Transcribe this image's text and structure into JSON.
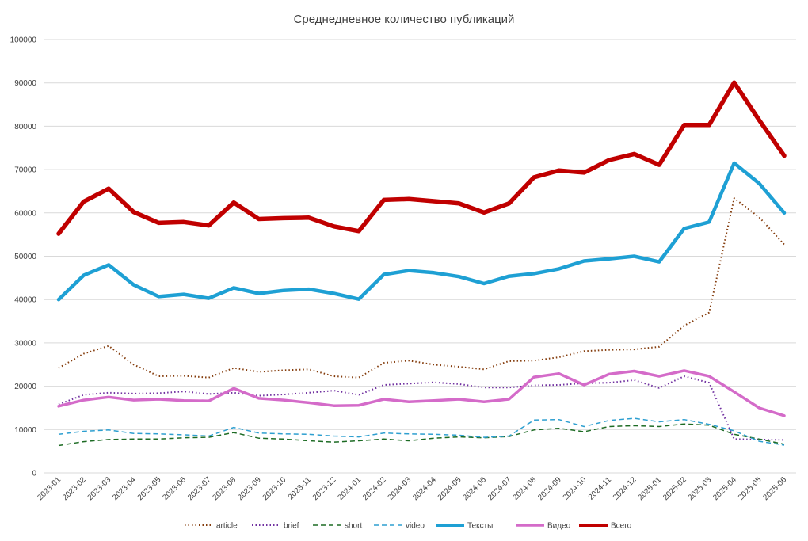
{
  "chart_data": {
    "type": "line",
    "title": "Среднедневное количество публикаций",
    "xlabel": "",
    "ylabel": "",
    "ylim": [
      0,
      100000
    ],
    "yticks": [
      "0",
      "10000",
      "20000",
      "30000",
      "40000",
      "50000",
      "60000",
      "70000",
      "80000",
      "90000",
      "100000"
    ],
    "grid": true,
    "legend_position": "bottom",
    "categories": [
      "2023-01",
      "2023-02",
      "2023-03",
      "2023-04",
      "2023-05",
      "2023-06",
      "2023-07",
      "2023-08",
      "2023-09",
      "2023-10",
      "2023-11",
      "2023-12",
      "2024-01",
      "2024-02",
      "2024-03",
      "2024-04",
      "2024-05",
      "2024-06",
      "2024-07",
      "2024-08",
      "2024-09",
      "2024-10",
      "2024-11",
      "2024-12",
      "2025-01",
      "2025-02",
      "2025-03",
      "2025-04",
      "2025-05",
      "2025-06"
    ],
    "series": [
      {
        "name": "article",
        "color": "#843c0c",
        "style": "dotted",
        "width": 2,
        "values": [
          24200,
          27500,
          29300,
          25000,
          22300,
          22400,
          22000,
          24200,
          23300,
          23700,
          23900,
          22300,
          22000,
          25400,
          25900,
          25000,
          24500,
          23900,
          25800,
          25900,
          26700,
          28100,
          28400,
          28500,
          29100,
          34000,
          37000,
          63400,
          59000,
          52700
        ]
      },
      {
        "name": "brief",
        "color": "#7030a0",
        "style": "dotted",
        "width": 2,
        "values": [
          15800,
          18000,
          18500,
          18300,
          18400,
          18800,
          18200,
          18500,
          17800,
          18100,
          18500,
          19000,
          18000,
          20300,
          20600,
          20900,
          20500,
          19700,
          19700,
          20200,
          20300,
          20700,
          20800,
          21400,
          19600,
          22300,
          20800,
          7800,
          7700,
          7600
        ]
      },
      {
        "name": "short",
        "color": "#1d6b24",
        "style": "dashed",
        "width": 1.5,
        "values": [
          6300,
          7200,
          7700,
          7800,
          7800,
          8100,
          8200,
          9300,
          8000,
          7800,
          7400,
          7100,
          7400,
          7800,
          7400,
          8000,
          8300,
          8100,
          8400,
          9900,
          10300,
          9500,
          10700,
          10900,
          10700,
          11300,
          11000,
          8900,
          7800,
          6600
        ]
      },
      {
        "name": "video",
        "color": "#2e9fd0",
        "style": "dashed",
        "width": 1.5,
        "values": [
          8900,
          9600,
          9900,
          9100,
          9000,
          8800,
          8500,
          10500,
          9200,
          9000,
          8900,
          8500,
          8300,
          9200,
          9000,
          8900,
          8700,
          8200,
          8500,
          12200,
          12300,
          10700,
          12100,
          12600,
          11800,
          12300,
          11200,
          9700,
          7300,
          6400
        ]
      },
      {
        "name": "Тексты",
        "color": "#1ea0d4",
        "style": "solid",
        "width": 4.5,
        "values": [
          40000,
          45600,
          48000,
          43400,
          40700,
          41200,
          40300,
          42700,
          41400,
          42100,
          42400,
          41400,
          40100,
          45800,
          46700,
          46200,
          45300,
          43700,
          45400,
          46000,
          47100,
          48900,
          49400,
          50000,
          48700,
          56400,
          57900,
          71500,
          66800,
          60000
        ]
      },
      {
        "name": "Видео",
        "color": "#d46bc9",
        "style": "solid",
        "width": 3.5,
        "values": [
          15400,
          16800,
          17500,
          16800,
          17000,
          16700,
          16600,
          19500,
          17200,
          16800,
          16200,
          15500,
          15600,
          17000,
          16400,
          16700,
          17000,
          16400,
          17000,
          22100,
          22900,
          20300,
          22800,
          23500,
          22300,
          23600,
          22300,
          18700,
          15000,
          13200
        ]
      },
      {
        "name": "Всего",
        "color": "#c00000",
        "style": "solid",
        "width": 5.5,
        "values": [
          55200,
          62600,
          65600,
          60200,
          57700,
          57900,
          57100,
          62400,
          58600,
          58800,
          58900,
          56900,
          55800,
          63000,
          63200,
          62700,
          62200,
          60100,
          62200,
          68200,
          69800,
          69300,
          72200,
          73600,
          71100,
          80300,
          80300,
          90100,
          81400,
          73200
        ]
      }
    ]
  }
}
